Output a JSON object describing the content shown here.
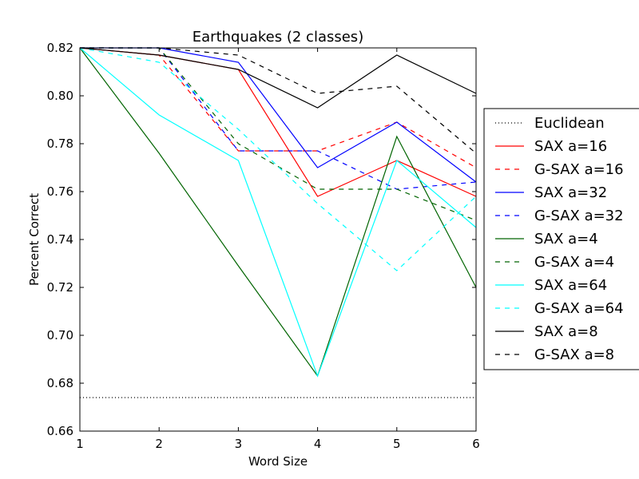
{
  "chart_data": {
    "type": "line",
    "title": "Earthquakes (2 classes)",
    "xlabel": "Word Size",
    "ylabel": "Percent Correct",
    "xlim": [
      1,
      6
    ],
    "ylim": [
      0.66,
      0.82
    ],
    "x_ticks": [
      "1",
      "2",
      "3",
      "4",
      "5",
      "6"
    ],
    "y_ticks": [
      "0.66",
      "0.68",
      "0.70",
      "0.72",
      "0.74",
      "0.76",
      "0.78",
      "0.80",
      "0.82"
    ],
    "grid": false,
    "legend_position": "right",
    "x": [
      1,
      2,
      3,
      4,
      5,
      6
    ],
    "series": [
      {
        "name": "Euclidean",
        "color": "#000000",
        "style": "dotted",
        "values": [
          0.674,
          0.674,
          0.674,
          0.674,
          0.674,
          0.674
        ]
      },
      {
        "name": "SAX a=16",
        "color": "#ff0000",
        "style": "solid",
        "values": [
          0.82,
          0.817,
          0.811,
          0.758,
          0.773,
          0.758
        ]
      },
      {
        "name": "G-SAX a=16",
        "color": "#ff0000",
        "style": "dashed",
        "values": [
          0.82,
          0.817,
          0.777,
          0.777,
          0.789,
          0.77
        ]
      },
      {
        "name": "SAX a=32",
        "color": "#0000ff",
        "style": "solid",
        "values": [
          0.82,
          0.82,
          0.814,
          0.77,
          0.789,
          0.764
        ]
      },
      {
        "name": "G-SAX a=32",
        "color": "#0000ff",
        "style": "dashed",
        "values": [
          0.82,
          0.82,
          0.777,
          0.777,
          0.761,
          0.764
        ]
      },
      {
        "name": "SAX a=4",
        "color": "#006400",
        "style": "solid",
        "values": [
          0.82,
          0.776,
          0.729,
          0.683,
          0.783,
          0.72
        ]
      },
      {
        "name": "G-SAX a=4",
        "color": "#006400",
        "style": "dashed",
        "values": [
          0.82,
          0.82,
          0.78,
          0.761,
          0.761,
          0.748
        ]
      },
      {
        "name": "SAX a=64",
        "color": "#00ffff",
        "style": "solid",
        "values": [
          0.82,
          0.792,
          0.773,
          0.683,
          0.773,
          0.745
        ]
      },
      {
        "name": "G-SAX a=64",
        "color": "#00ffff",
        "style": "dashed",
        "values": [
          0.82,
          0.814,
          0.786,
          0.755,
          0.727,
          0.758
        ]
      },
      {
        "name": "SAX a=8",
        "color": "#000000",
        "style": "solid",
        "values": [
          0.82,
          0.817,
          0.811,
          0.795,
          0.817,
          0.801
        ]
      },
      {
        "name": "G-SAX a=8",
        "color": "#000000",
        "style": "dashed",
        "values": [
          0.82,
          0.82,
          0.817,
          0.801,
          0.804,
          0.776
        ]
      }
    ]
  }
}
